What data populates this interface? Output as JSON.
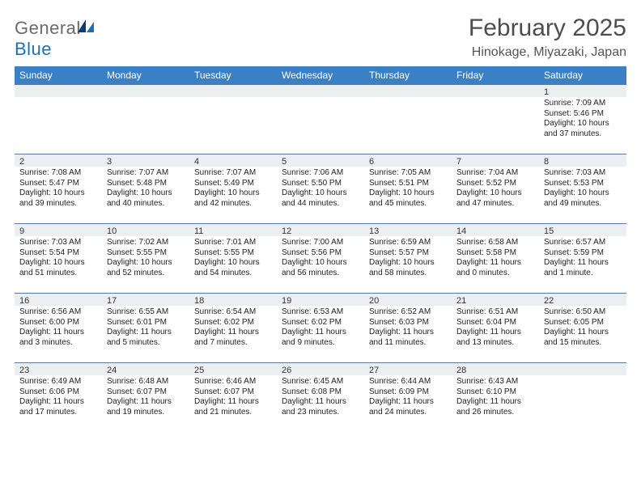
{
  "logo": {
    "word1": "General",
    "word2": "Blue"
  },
  "title": "February 2025",
  "location": "Hinokage, Miyazaki, Japan",
  "colors": {
    "header_bg": "#3b7fc4",
    "header_text": "#ffffff",
    "daynum_bg": "#eceff1",
    "daynum_border": "#5b7a99",
    "logo_gray": "#6a6a6a",
    "logo_blue": "#1f6fb2"
  },
  "weekdays": [
    "Sunday",
    "Monday",
    "Tuesday",
    "Wednesday",
    "Thursday",
    "Friday",
    "Saturday"
  ],
  "weeks": [
    [
      null,
      null,
      null,
      null,
      null,
      null,
      {
        "n": "1",
        "sr": "7:09 AM",
        "ss": "5:46 PM",
        "dl": "10 hours and 37 minutes."
      }
    ],
    [
      {
        "n": "2",
        "sr": "7:08 AM",
        "ss": "5:47 PM",
        "dl": "10 hours and 39 minutes."
      },
      {
        "n": "3",
        "sr": "7:07 AM",
        "ss": "5:48 PM",
        "dl": "10 hours and 40 minutes."
      },
      {
        "n": "4",
        "sr": "7:07 AM",
        "ss": "5:49 PM",
        "dl": "10 hours and 42 minutes."
      },
      {
        "n": "5",
        "sr": "7:06 AM",
        "ss": "5:50 PM",
        "dl": "10 hours and 44 minutes."
      },
      {
        "n": "6",
        "sr": "7:05 AM",
        "ss": "5:51 PM",
        "dl": "10 hours and 45 minutes."
      },
      {
        "n": "7",
        "sr": "7:04 AM",
        "ss": "5:52 PM",
        "dl": "10 hours and 47 minutes."
      },
      {
        "n": "8",
        "sr": "7:03 AM",
        "ss": "5:53 PM",
        "dl": "10 hours and 49 minutes."
      }
    ],
    [
      {
        "n": "9",
        "sr": "7:03 AM",
        "ss": "5:54 PM",
        "dl": "10 hours and 51 minutes."
      },
      {
        "n": "10",
        "sr": "7:02 AM",
        "ss": "5:55 PM",
        "dl": "10 hours and 52 minutes."
      },
      {
        "n": "11",
        "sr": "7:01 AM",
        "ss": "5:55 PM",
        "dl": "10 hours and 54 minutes."
      },
      {
        "n": "12",
        "sr": "7:00 AM",
        "ss": "5:56 PM",
        "dl": "10 hours and 56 minutes."
      },
      {
        "n": "13",
        "sr": "6:59 AM",
        "ss": "5:57 PM",
        "dl": "10 hours and 58 minutes."
      },
      {
        "n": "14",
        "sr": "6:58 AM",
        "ss": "5:58 PM",
        "dl": "11 hours and 0 minutes."
      },
      {
        "n": "15",
        "sr": "6:57 AM",
        "ss": "5:59 PM",
        "dl": "11 hours and 1 minute."
      }
    ],
    [
      {
        "n": "16",
        "sr": "6:56 AM",
        "ss": "6:00 PM",
        "dl": "11 hours and 3 minutes."
      },
      {
        "n": "17",
        "sr": "6:55 AM",
        "ss": "6:01 PM",
        "dl": "11 hours and 5 minutes."
      },
      {
        "n": "18",
        "sr": "6:54 AM",
        "ss": "6:02 PM",
        "dl": "11 hours and 7 minutes."
      },
      {
        "n": "19",
        "sr": "6:53 AM",
        "ss": "6:02 PM",
        "dl": "11 hours and 9 minutes."
      },
      {
        "n": "20",
        "sr": "6:52 AM",
        "ss": "6:03 PM",
        "dl": "11 hours and 11 minutes."
      },
      {
        "n": "21",
        "sr": "6:51 AM",
        "ss": "6:04 PM",
        "dl": "11 hours and 13 minutes."
      },
      {
        "n": "22",
        "sr": "6:50 AM",
        "ss": "6:05 PM",
        "dl": "11 hours and 15 minutes."
      }
    ],
    [
      {
        "n": "23",
        "sr": "6:49 AM",
        "ss": "6:06 PM",
        "dl": "11 hours and 17 minutes."
      },
      {
        "n": "24",
        "sr": "6:48 AM",
        "ss": "6:07 PM",
        "dl": "11 hours and 19 minutes."
      },
      {
        "n": "25",
        "sr": "6:46 AM",
        "ss": "6:07 PM",
        "dl": "11 hours and 21 minutes."
      },
      {
        "n": "26",
        "sr": "6:45 AM",
        "ss": "6:08 PM",
        "dl": "11 hours and 23 minutes."
      },
      {
        "n": "27",
        "sr": "6:44 AM",
        "ss": "6:09 PM",
        "dl": "11 hours and 24 minutes."
      },
      {
        "n": "28",
        "sr": "6:43 AM",
        "ss": "6:10 PM",
        "dl": "11 hours and 26 minutes."
      },
      null
    ]
  ],
  "labels": {
    "sunrise": "Sunrise:",
    "sunset": "Sunset:",
    "daylight": "Daylight:"
  }
}
